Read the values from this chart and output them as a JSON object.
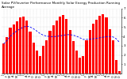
{
  "title": "Solar PV/Inverter Performance Monthly Solar Energy Production Running Average",
  "months": [
    "J",
    "F",
    "M",
    "A",
    "M",
    "J",
    "J",
    "A",
    "S",
    "O",
    "N",
    "D",
    "J",
    "F",
    "M",
    "A",
    "M",
    "J",
    "J",
    "A",
    "S",
    "O",
    "N",
    "D",
    "J",
    "F",
    "M",
    "A",
    "M",
    "J",
    "J",
    "A",
    "S",
    "O",
    "N",
    "D"
  ],
  "values": [
    320,
    390,
    490,
    530,
    560,
    600,
    610,
    570,
    450,
    330,
    250,
    190,
    300,
    360,
    460,
    520,
    570,
    610,
    630,
    590,
    470,
    345,
    245,
    175,
    185,
    355,
    470,
    535,
    580,
    625,
    640,
    600,
    480,
    355,
    145,
    28
  ],
  "running_avg": [
    320,
    355,
    400,
    433,
    458,
    482,
    500,
    509,
    500,
    482,
    457,
    430,
    412,
    402,
    398,
    397,
    400,
    405,
    412,
    418,
    418,
    413,
    401,
    385,
    367,
    367,
    369,
    374,
    378,
    385,
    391,
    396,
    398,
    394,
    373,
    333
  ],
  "bar_color": "#FF0000",
  "avg_color": "#0000FF",
  "bg_color": "#FFFFFF",
  "plot_bg": "#FFFFFF",
  "grid_color": "#BBBBBB",
  "ylim": [
    0,
    700
  ],
  "yticks": [
    100,
    200,
    300,
    400,
    500,
    600,
    700
  ],
  "ytick_labels": [
    "1",
    "2",
    "3",
    "4",
    "5",
    "6",
    "7"
  ],
  "ylabel_fontsize": 3.0,
  "title_fontsize": 3.0,
  "xlabel_fontsize": 2.5
}
